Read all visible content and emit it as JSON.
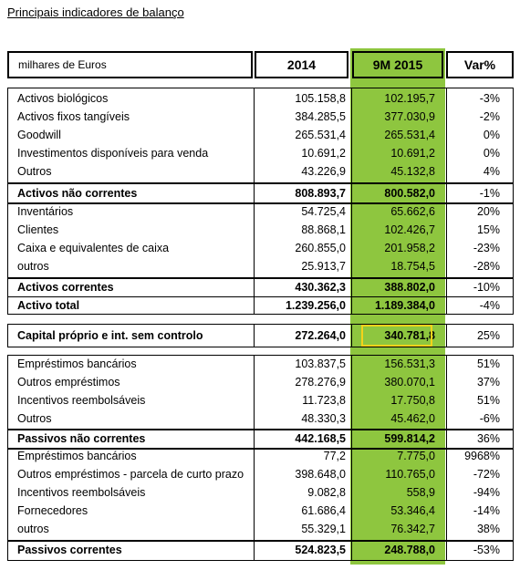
{
  "title": "Principais indicadores de balanço",
  "header": {
    "units": "milhares de Euros",
    "col_2014": "2014",
    "col_9m2015": "9M 2015",
    "col_var": "Var%"
  },
  "rows_nc_assets": [
    {
      "label": "Activos biológicos",
      "v2014": "105.158,8",
      "v9m": "102.195,7",
      "var": "-3%"
    },
    {
      "label": "Activos fixos tangíveis",
      "v2014": "384.285,5",
      "v9m": "377.030,9",
      "var": "-2%"
    },
    {
      "label": "Goodwill",
      "v2014": "265.531,4",
      "v9m": "265.531,4",
      "var": "0%"
    },
    {
      "label": "Investimentos disponíveis para venda",
      "v2014": "10.691,2",
      "v9m": "10.691,2",
      "var": "0%"
    },
    {
      "label": "Outros",
      "v2014": "43.226,9",
      "v9m": "45.132,8",
      "var": "4%"
    }
  ],
  "total_nc_assets": {
    "label": "Activos não correntes",
    "v2014": "808.893,7",
    "v9m": "800.582,0",
    "var": "-1%"
  },
  "rows_c_assets": [
    {
      "label": "Inventários",
      "v2014": "54.725,4",
      "v9m": "65.662,6",
      "var": "20%"
    },
    {
      "label": "Clientes",
      "v2014": "88.868,1",
      "v9m": "102.426,7",
      "var": "15%"
    },
    {
      "label": "Caixa e equivalentes de caixa",
      "v2014": "260.855,0",
      "v9m": "201.958,2",
      "var": "-23%"
    },
    {
      "label": "outros",
      "v2014": "25.913,7",
      "v9m": "18.754,5",
      "var": "-28%"
    }
  ],
  "total_c_assets": {
    "label": "Activos correntes",
    "v2014": "430.362,3",
    "v9m": "388.802,0",
    "var": "-10%"
  },
  "total_assets": {
    "label": "Activo total",
    "v2014": "1.239.256,0",
    "v9m": "1.189.384,0",
    "var": "-4%"
  },
  "equity": {
    "label": "Capital próprio e int. sem controlo",
    "v2014": "272.264,0",
    "v9m": "340.781,8",
    "var": "25%"
  },
  "rows_nc_liab": [
    {
      "label": "Empréstimos bancários",
      "v2014": "103.837,5",
      "v9m": "156.531,3",
      "var": "51%"
    },
    {
      "label": "Outros empréstimos",
      "v2014": "278.276,9",
      "v9m": "380.070,1",
      "var": "37%"
    },
    {
      "label": "Incentivos reembolsáveis",
      "v2014": "11.723,8",
      "v9m": "17.750,8",
      "var": "51%"
    },
    {
      "label": "Outros",
      "v2014": "48.330,3",
      "v9m": "45.462,0",
      "var": "-6%"
    }
  ],
  "total_nc_liab": {
    "label": "Passivos não correntes",
    "v2014": "442.168,5",
    "v9m": "599.814,2",
    "var": "36%"
  },
  "rows_c_liab": [
    {
      "label": "Empréstimos bancários",
      "v2014": "77,2",
      "v9m": "7.775,0",
      "var": "9968%"
    },
    {
      "label": "Outros empréstimos - parcela de curto prazo",
      "v2014": "398.648,0",
      "v9m": "110.765,0",
      "var": "-72%"
    },
    {
      "label": "Incentivos reembolsáveis",
      "v2014": "9.082,8",
      "v9m": "558,9",
      "var": "-94%"
    },
    {
      "label": "Fornecedores",
      "v2014": "61.686,4",
      "v9m": "53.346,4",
      "var": "-14%"
    },
    {
      "label": "outros",
      "v2014": "55.329,1",
      "v9m": "76.342,7",
      "var": "38%"
    }
  ],
  "total_c_liab": {
    "label": "Passivos correntes",
    "v2014": "524.823,5",
    "v9m": "248.788,0",
    "var": "-53%"
  },
  "colors": {
    "highlight_green": "#8ec63f",
    "highlight_yellow": "#f5d21a"
  }
}
